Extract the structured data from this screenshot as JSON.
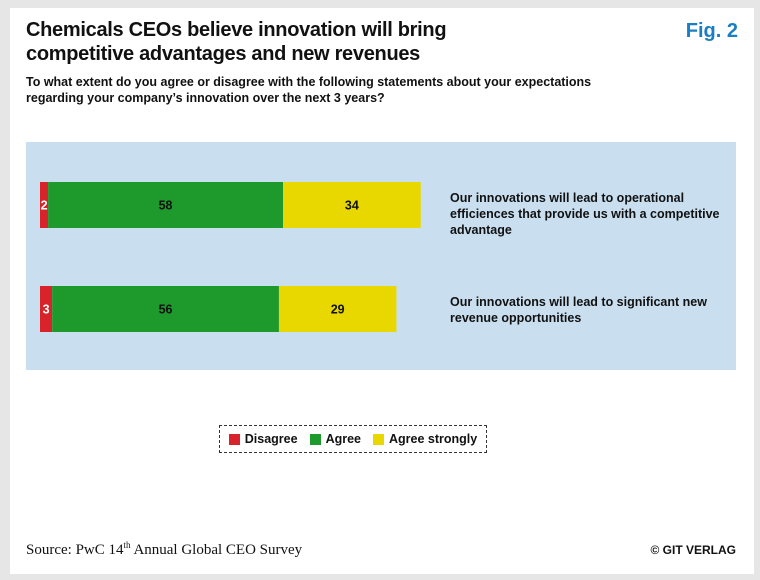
{
  "title": "Chemicals CEOs believe innovation will bring competitive advantages and new revenues",
  "figure_label": "Fig. 2",
  "question": "To what extent do you agree or disagree with the following statements about your expectations regarding your company’s innovation over the next 3 years?",
  "source": {
    "prefix": "Source: PwC 14",
    "superscript": "th",
    "suffix": " Annual Global CEO Survey"
  },
  "copyright": "© GIT VERLAG",
  "chart_data": {
    "type": "bar",
    "orientation": "horizontal",
    "stacked": true,
    "unit": "%",
    "categories": [
      "Our innovations will lead to operational efficiences that provide us with a competitive advantage",
      "Our innovations will lead to significant new revenue opportunities"
    ],
    "series": [
      {
        "name": "Disagree",
        "color": "#d8232a",
        "values": [
          2,
          3
        ]
      },
      {
        "name": "Agree",
        "color": "#1e9a2c",
        "values": [
          58,
          56
        ]
      },
      {
        "name": "Agree strongly",
        "color": "#e8d800",
        "values": [
          34,
          29
        ]
      }
    ],
    "xlim": [
      0,
      100
    ],
    "legend_position": "bottom"
  }
}
